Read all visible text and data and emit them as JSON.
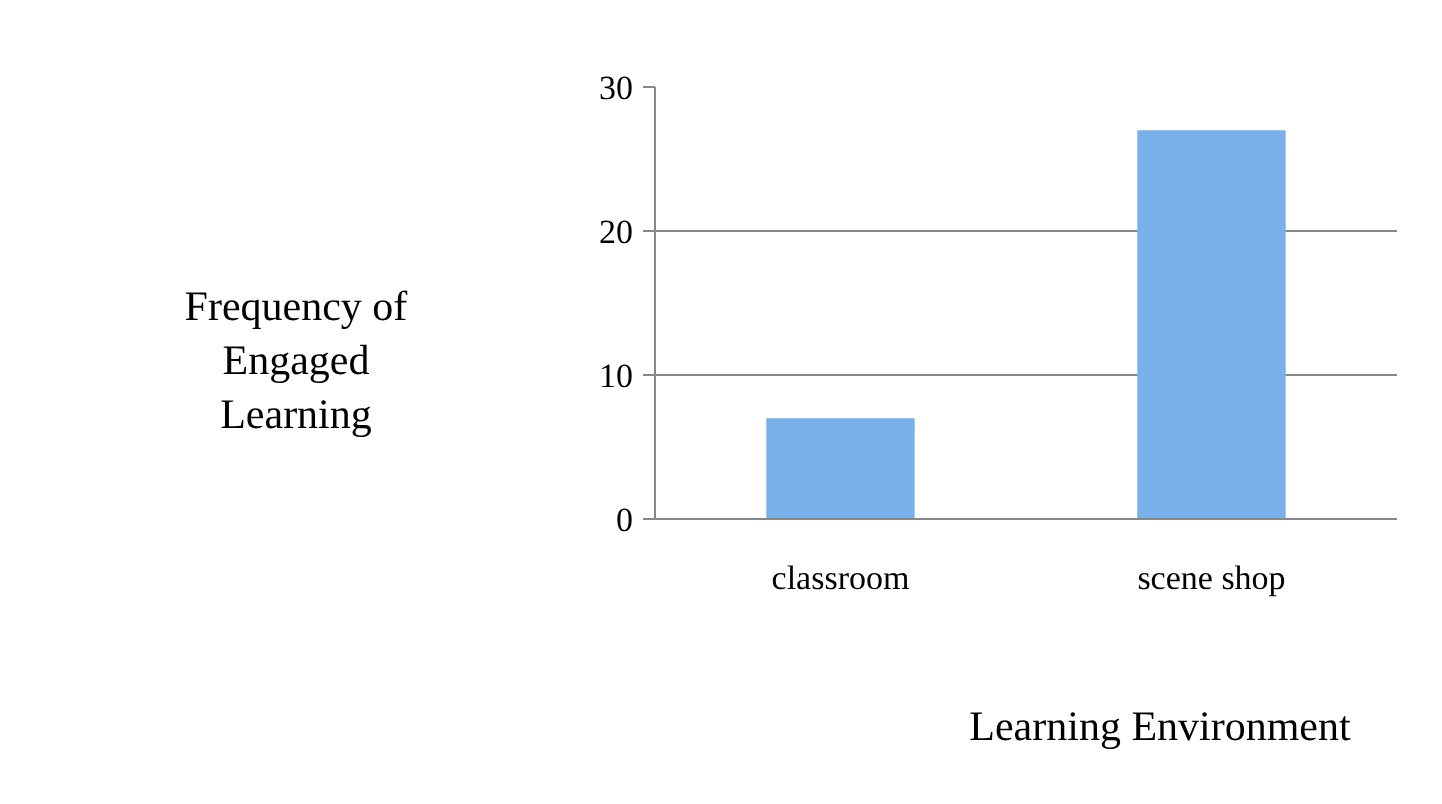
{
  "chart_data": {
    "type": "bar",
    "ylabel": "Frequency of Engaged Learning",
    "xlabel": "Learning Environment",
    "categories": [
      "classroom",
      "scene shop"
    ],
    "values": [
      7,
      27
    ],
    "color": "#7ab0ea",
    "ylim": [
      0,
      30
    ],
    "yticks": [
      0,
      10,
      20,
      30
    ],
    "grid": "y"
  }
}
